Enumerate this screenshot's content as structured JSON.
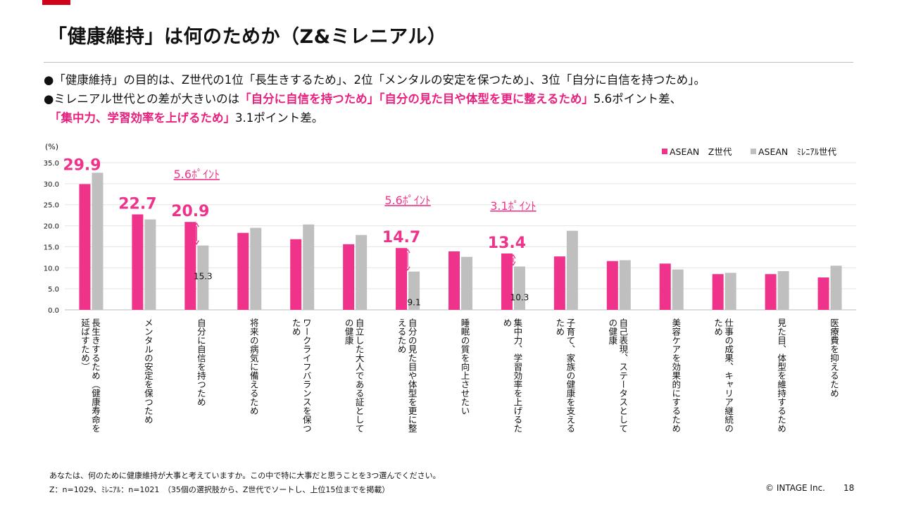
{
  "header": {
    "title": "「健康維持」は何のためか（Z&ミレニアル）"
  },
  "bullets": {
    "b1": "●「健康維持」の目的は、Z世代の1位「長生きするため」、2位「メンタルの安定を保つため」、3位「自分に自信を持つため」。",
    "b2_pre": "●ミレニアル世代との差が大きいのは",
    "b2_hl": "「自分に自信を持つため」「自分の見た目や体型を更に整えるため」",
    "b2_post": "5.6ポイント差、",
    "b3_hl": "「集中力、学習効率を上げるため」",
    "b3_post": "3.1ポイント差。"
  },
  "chart_data": {
    "type": "bar",
    "ylabel": "(%)",
    "ylim": [
      0,
      35
    ],
    "yticks": [
      "0.0",
      "5.0",
      "10.0",
      "15.0",
      "20.0",
      "25.0",
      "30.0",
      "35.0"
    ],
    "legend_position": "top-right",
    "categories": [
      "長生きするため（健康寿命を延ばすため）",
      "メンタルの安定を保つため",
      "自分に自信を持つため",
      "将来の病気に備えるため",
      "ワークライフバランスを保つため",
      "自立した大人である証としての健康",
      "自分の見た目や体型を更に整えるため",
      "睡眠の質を向上させたい",
      "集中力、学習効率を上げるため",
      "子育て、家族の健康を支えるため",
      "自己表現、ステータスとしての健康",
      "美容ケアを効果的にするため",
      "仕事の成果、キャリア継続のため",
      "見た目、体型を維持するため",
      "医療費を抑えるため"
    ],
    "series": [
      {
        "name": "ASEAN　Z世代",
        "color": "#f0338a",
        "values": [
          29.9,
          22.7,
          20.9,
          18.3,
          16.8,
          15.6,
          14.7,
          13.9,
          13.4,
          12.7,
          11.6,
          11.0,
          8.5,
          8.5,
          7.7
        ]
      },
      {
        "name": "ASEAN　ﾐﾚﾆｱﾙ世代",
        "color": "#bfbfbf",
        "values": [
          32.6,
          21.5,
          15.3,
          19.5,
          20.3,
          17.8,
          9.1,
          12.6,
          10.3,
          18.8,
          11.8,
          9.6,
          8.8,
          9.2,
          10.5
        ]
      }
    ],
    "value_labels_z": [
      "29.9",
      "22.7",
      "20.9",
      "14.7",
      "13.4"
    ],
    "value_labels_m": [
      "15.3",
      "9.1",
      "10.3"
    ],
    "diff_labels": [
      "5.6ﾎﾟｲﾝﾄ",
      "5.6ﾎﾟｲﾝﾄ",
      "3.1ﾎﾟｲﾝﾄ"
    ]
  },
  "footer": {
    "question": "あなたは、何のために健康維持が大事と考えていますか。この中で特に大事だと思うことを3つ選んでください。",
    "sample": "Z：n=1029、ﾐﾚﾆｱﾙ：n=1021　（35個の選択肢から、Z世代でソートし、上位15位までを掲載）",
    "copyright": "© INTAGE Inc.",
    "page": "18"
  }
}
